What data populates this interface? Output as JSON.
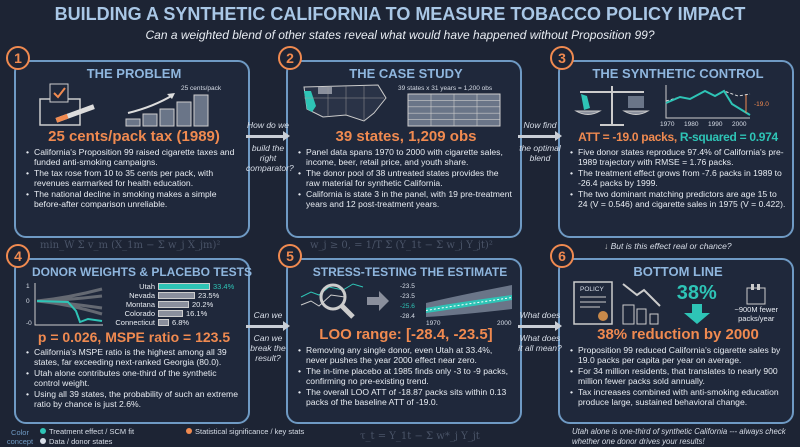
{
  "header": {
    "title": "BUILDING A SYNTHETIC CALIFORNIA TO MEASURE TOBACCO POLICY IMPACT",
    "subtitle": "Can a weighted blend of other states reveal what would have happened without Proposition 99?"
  },
  "colors": {
    "background": "#1d2434",
    "border": "#6f9ac4",
    "orange": "#f08a50",
    "teal": "#2ec4b6",
    "heading": "#8fb6de"
  },
  "panels": [
    {
      "num": "1",
      "title": "THE PROBLEM",
      "graphic_label": "25 cents/pack",
      "stat": "25 cents/pack tax (1989)",
      "bullets": [
        "California's Proposition 99 raised cigarette taxes and funded anti-smoking campaigns.",
        "The tax rose from 10 to 35 cents per pack, with revenues earmarked for health education.",
        "The national decline in smoking makes a simple before-after comparison unreliable."
      ]
    },
    {
      "num": "2",
      "title": "THE CASE STUDY",
      "graphic_label": "39 states x 31 years = 1,200 obs",
      "stat": "39 states, 1,209 obs",
      "bullets": [
        "Panel data spans 1970 to 2000 with cigarette sales, income, beer, retail price, and youth share.",
        "The donor pool of 38 untreated states provides the raw material for synthetic California.",
        "California is state 3 in the panel, with 19 pre-treatment years and 12 post-treatment years."
      ]
    },
    {
      "num": "3",
      "title": "THE SYNTHETIC CONTROL",
      "gap_label": "-19.0",
      "x_ticks": [
        "1970",
        "1980",
        "1990",
        "2000"
      ],
      "stat": "ATT = -19.0 packs,",
      "stat2": "R-squared = 0.974",
      "bullets": [
        "Five donor states reproduce 97.4% of California's pre-1989 trajectory with RMSE = 1.76 packs.",
        "The treatment effect grows from -7.6 packs in 1989 to -26.4 packs by 1999.",
        "The two dominant matching predictors are age 15 to 24 (V = 0.546) and cigarette sales in 1975 (V = 0.422)."
      ]
    },
    {
      "num": "4",
      "title": "DONOR WEIGHTS & PLACEBO TESTS",
      "y_ticks": [
        "1",
        "0",
        "-0"
      ],
      "donors": [
        {
          "name": "Utah",
          "label": "33.4%",
          "value": 33.4
        },
        {
          "name": "Nevada",
          "label": "23.5%",
          "value": 23.5
        },
        {
          "name": "Montana",
          "label": "20.2%",
          "value": 20.2
        },
        {
          "name": "Colorado",
          "label": "16.1%",
          "value": 16.1
        },
        {
          "name": "Connecticut",
          "label": "6.8%",
          "value": 6.8
        }
      ],
      "stat": "p = 0.026, MSPE ratio = 123.5",
      "bullets": [
        "California's MSPE ratio is the highest among all 39 states, far exceeding next-ranked Georgia (80.0).",
        "Utah alone contributes one-third of the synthetic control weight.",
        "Using all 39 states, the probability of such an extreme ratio by chance is just 2.6%."
      ]
    },
    {
      "num": "5",
      "title": "STRESS-TESTING THE ESTIMATE",
      "y_ticks": [
        "-23.5",
        "-23.5",
        "-25.6",
        "-28.4"
      ],
      "x_ticks": [
        "1970",
        "2000"
      ],
      "stat": "LOO range: [-28.4, -23.5]",
      "bullets": [
        "Removing any single donor, even Utah at 33.4%, never pushes the year 2000 effect near zero.",
        "The in-time placebo at 1985 finds only -3 to -9 packs, confirming no pre-existing trend.",
        "The overall LOO ATT of -18.87 packs sits within 0.13 packs of the baseline ATT of -19.0."
      ]
    },
    {
      "num": "6",
      "title": "BOTTOM LINE",
      "policy_label": "POLICY",
      "big_pct": "38%",
      "fewer_label": "~900M fewer packs/year",
      "stat": "38% reduction by 2000",
      "bullets": [
        "Proposition 99 reduced California's cigarette sales by 19.0 packs per capita per year on average.",
        "For 34 million residents, that translates to nearly 900 million fewer packs sold annually.",
        "Tax increases combined with anti-smoking education produce large, sustained behavioral change."
      ]
    }
  ],
  "connectors": {
    "c12_top": "How do we",
    "c12_bot": "build the right comparator?",
    "c23_top": "Now find",
    "c23_bot": "the optimal blend",
    "c36": "But is this effect real or chance?",
    "c45_top": "Can we",
    "c45_bot": "Can we break the result?",
    "c56_top": "What does",
    "c56_bot": "What does it all mean?"
  },
  "formulas": [
    "min_W Σ v_m (X_1m − Σ w_j X_jm)²",
    "w_j ≥ 0, = 1/T Σ (Y_1t − Σ w_j Y_jt)²",
    "τ_t = Y_1t − Σ w*_j Y_jt"
  ],
  "legend": {
    "label": "Color concept",
    "items": [
      "Treatment effect / SCM fit",
      "Statistical significance / key stats",
      "Data / donor states"
    ]
  },
  "footer_note": "Utah alone is one-third of synthetic California --- always check whether one donor drives your results!"
}
